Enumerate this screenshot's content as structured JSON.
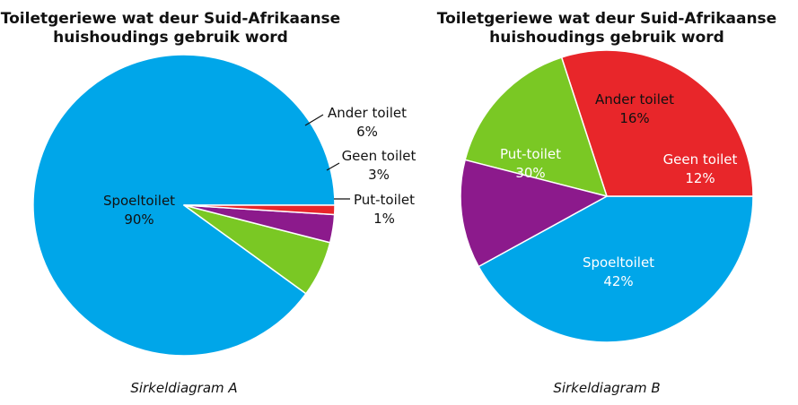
{
  "chart_data": [
    {
      "type": "pie",
      "title": "Toiletgeriewe wat deur Suid-Afrikaanse huishoudings gebruik word",
      "title_lines": [
        "Toiletgeriewe wat deur Suid-Afrikaanse",
        "huishoudings gebruik word"
      ],
      "caption": "Sirkeldiagram A",
      "slices": [
        {
          "label": "Spoeltoilet",
          "value": 90,
          "value_label": "90%",
          "color": "#00a6e9"
        },
        {
          "label": "Ander toilet",
          "value": 6,
          "value_label": "6%",
          "color": "#7ac824"
        },
        {
          "label": "Geen toilet",
          "value": 3,
          "value_label": "3%",
          "color": "#8c1a8c"
        },
        {
          "label": "Put-toilet",
          "value": 1,
          "value_label": "1%",
          "color": "#e8262a"
        }
      ]
    },
    {
      "type": "pie",
      "title": "Toiletgeriewe wat deur Suid-Afrikaanse huishoudings gebruik word",
      "title_lines": [
        "Toiletgeriewe wat deur Suid-Afrikaanse",
        "huishoudings gebruik word"
      ],
      "caption": "Sirkeldiagram B",
      "slices": [
        {
          "label": "Spoeltoilet",
          "value": 42,
          "value_label": "42%",
          "color": "#00a6e9"
        },
        {
          "label": "Put-toilet",
          "value": 30,
          "value_label": "30%",
          "color": "#e8262a"
        },
        {
          "label": "Ander toilet",
          "value": 16,
          "value_label": "16%",
          "color": "#7ac824"
        },
        {
          "label": "Geen toilet",
          "value": 12,
          "value_label": "12%",
          "color": "#8c1a8c"
        }
      ]
    }
  ]
}
